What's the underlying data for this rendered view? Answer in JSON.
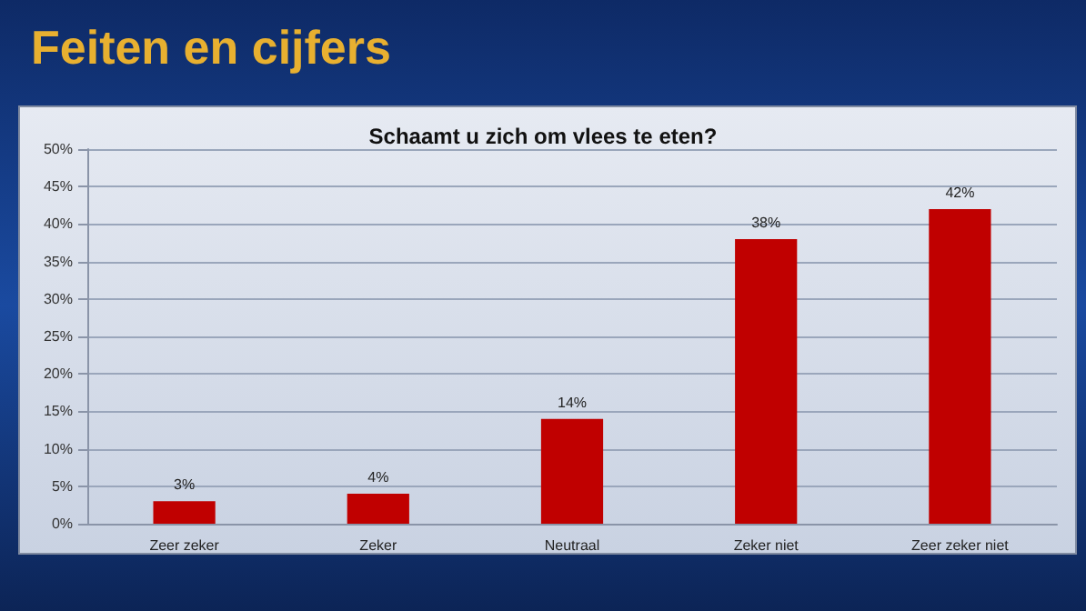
{
  "chart_data": {
    "type": "bar",
    "title": "Feiten en cijfers",
    "subtitle": "Schaamt u zich om vlees te eten?",
    "categories": [
      "Zeer zeker",
      "Zeker",
      "Neutraal",
      "Zeker niet",
      "Zeer zeker niet"
    ],
    "values": [
      3,
      4,
      14,
      38,
      42
    ],
    "color": "#c00000",
    "data_labels": true,
    "value_labels": [
      "3%",
      "4%",
      "14%",
      "38%",
      "42%"
    ],
    "ylim": [
      0,
      50
    ],
    "yticks": [
      {
        "value": 0,
        "label": "0%"
      },
      {
        "value": 5,
        "label": "5%"
      },
      {
        "value": 10,
        "label": "10%"
      },
      {
        "value": 15,
        "label": "15%"
      },
      {
        "value": 20,
        "label": "20%"
      },
      {
        "value": 25,
        "label": "25%"
      },
      {
        "value": 30,
        "label": "30%"
      },
      {
        "value": 35,
        "label": "35%"
      },
      {
        "value": 40,
        "label": "40%"
      },
      {
        "value": 45,
        "label": "45%"
      },
      {
        "value": 50,
        "label": "50%"
      }
    ],
    "grid": "y"
  }
}
